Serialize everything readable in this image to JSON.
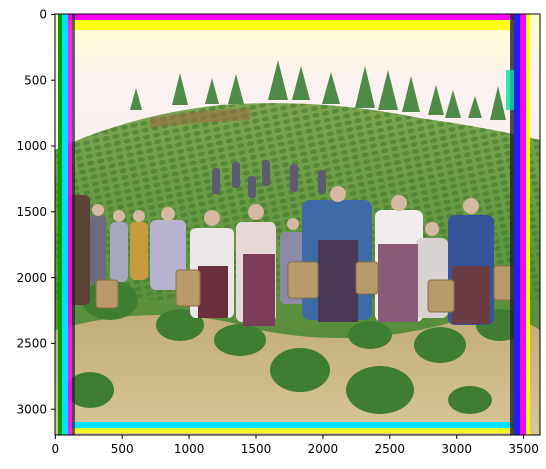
{
  "figure": {
    "x_ticks": [
      "0",
      "500",
      "1000",
      "1500",
      "2000",
      "2500",
      "3000",
      "3500"
    ],
    "y_ticks": [
      "0",
      "500",
      "1000",
      "1500",
      "2000",
      "2500",
      "3000"
    ]
  },
  "image": {
    "x_range": [
      0,
      3620
    ],
    "y_range": [
      0,
      3200
    ],
    "x_tick_values": [
      0,
      500,
      1000,
      1500,
      2000,
      2500,
      3000,
      3500
    ],
    "y_tick_values": [
      0,
      500,
      1000,
      1500,
      2000,
      2500,
      3000
    ],
    "colors": {
      "sky": "#f6eef0",
      "tree": "#4d8a45",
      "field_green": "#5d9a3e",
      "dirt": "#9b6e45",
      "straw": "#cdb684",
      "border_magenta": "#ff00ff",
      "border_yellow": "#ffff00",
      "border_cyan": "#00e0ff",
      "border_blue": "#2020ff"
    }
  }
}
